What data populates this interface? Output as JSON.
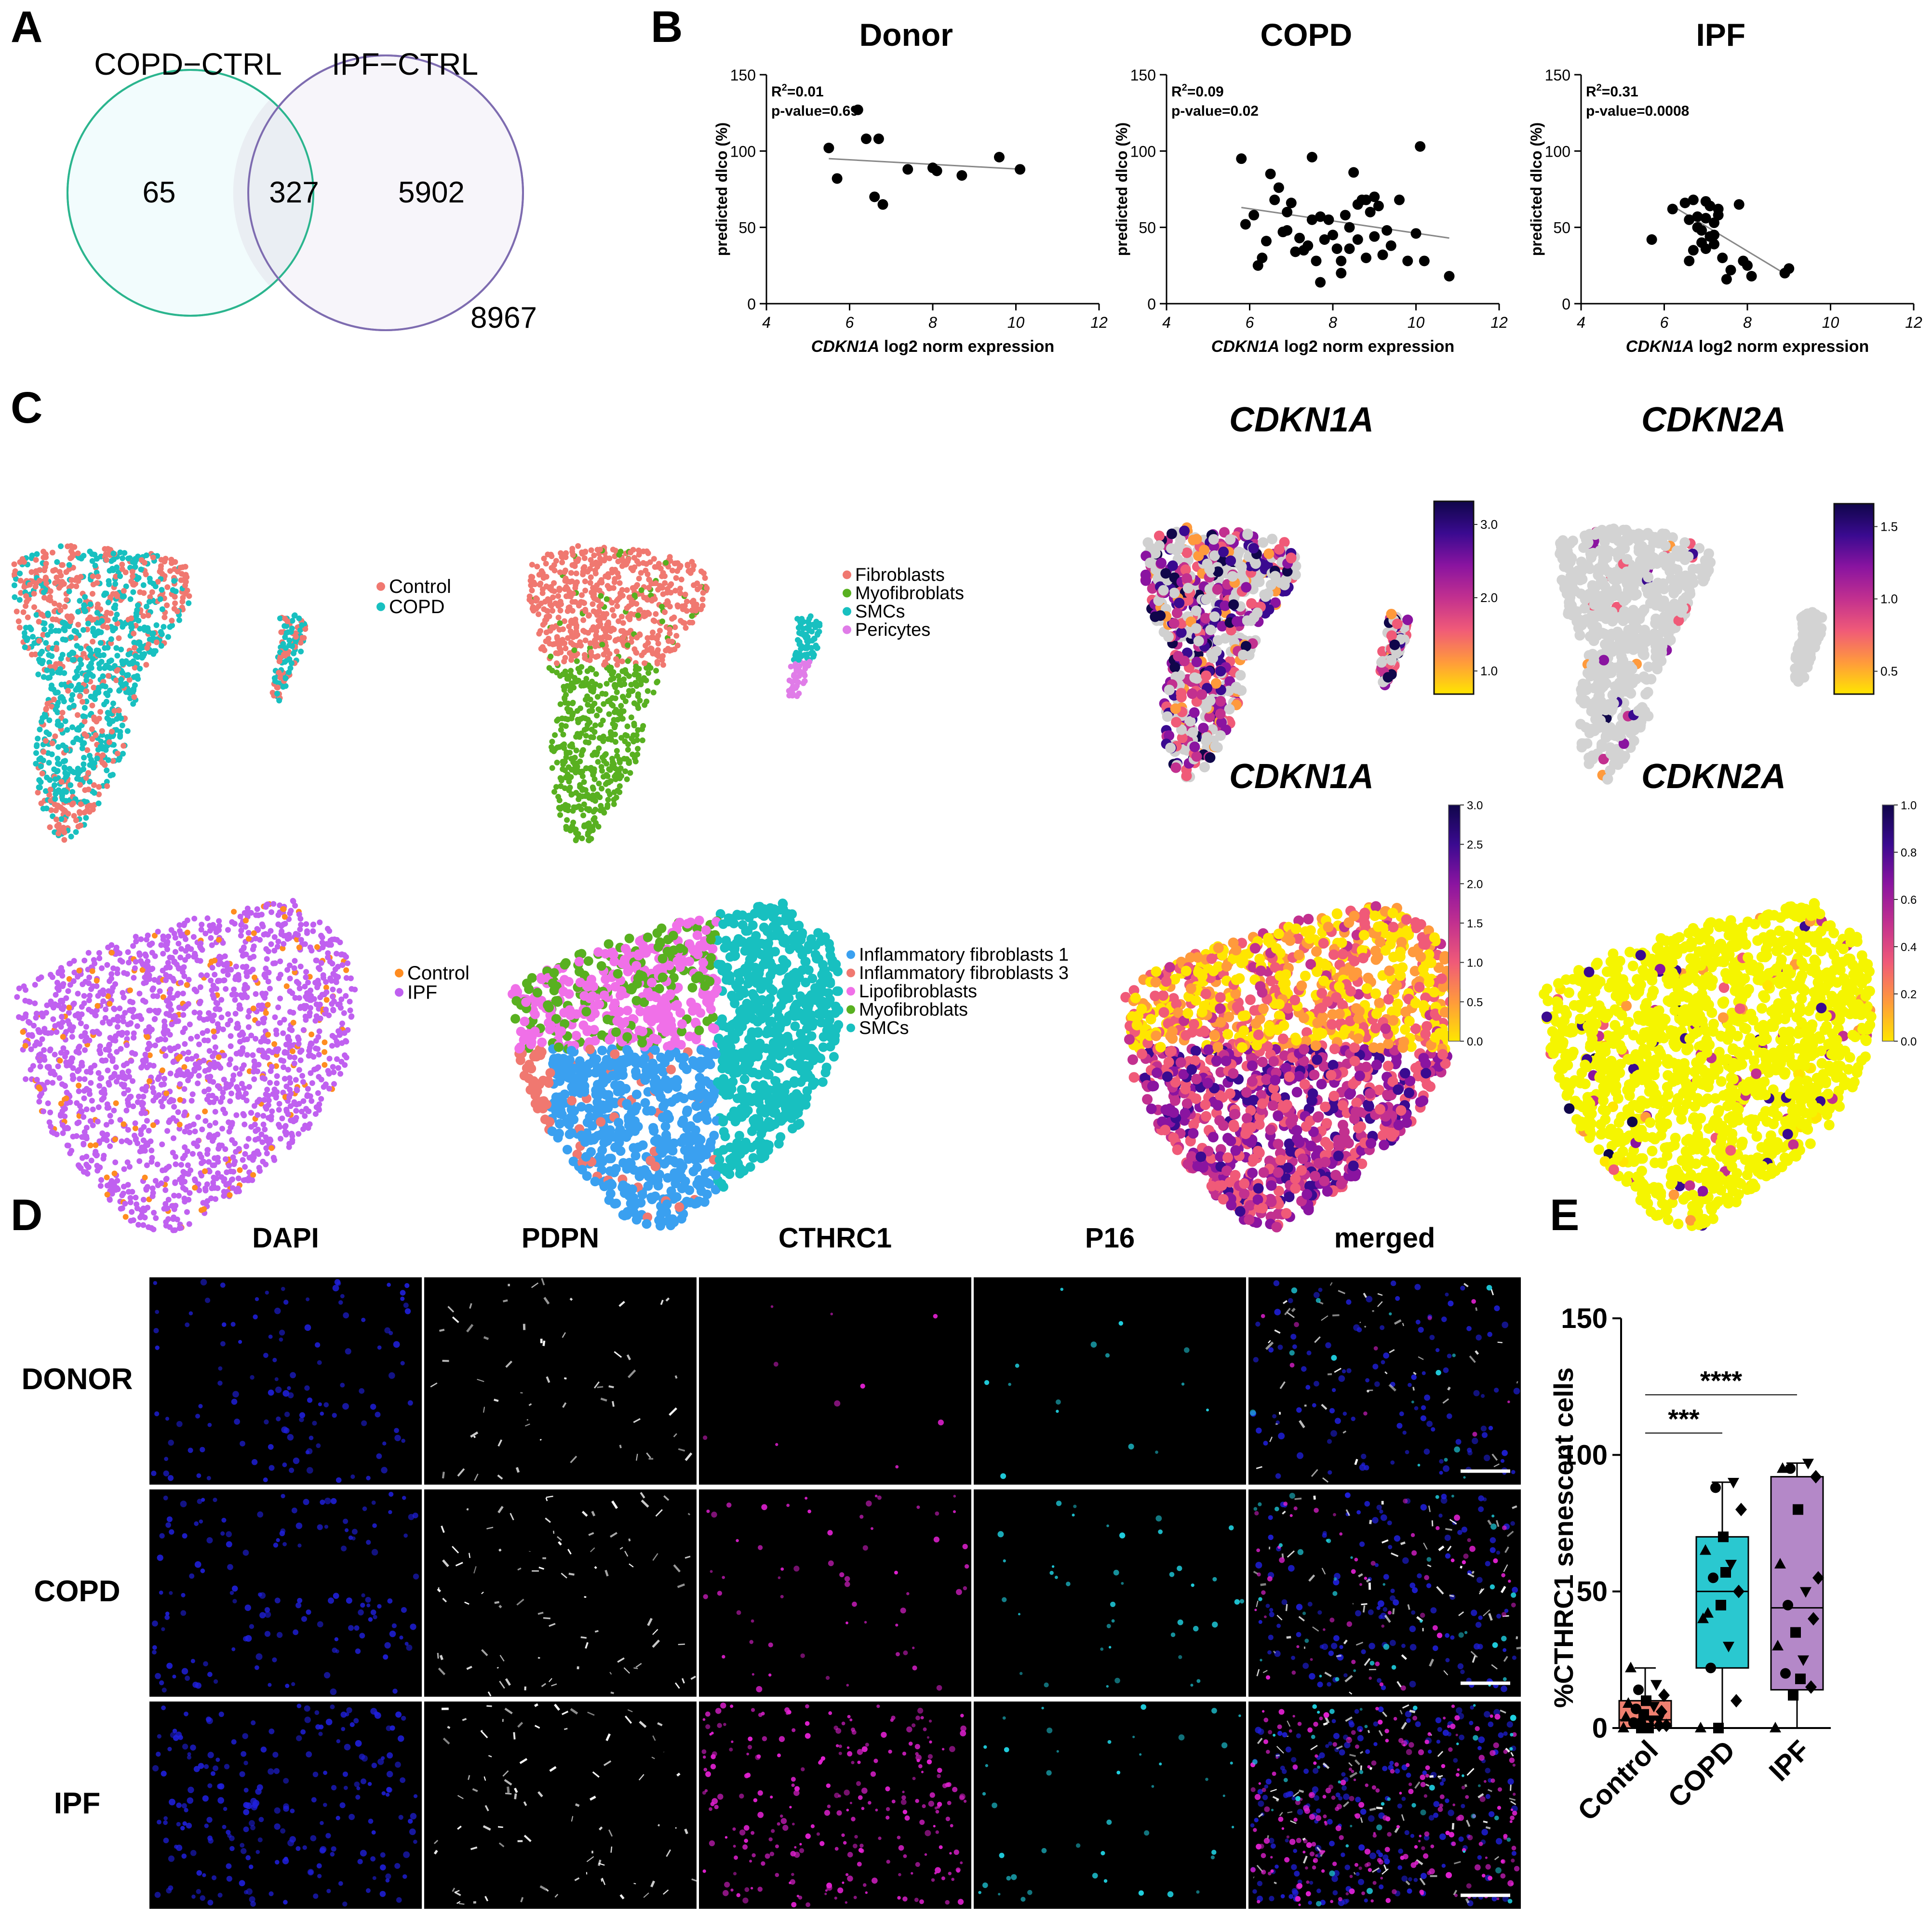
{
  "panels": {
    "a": "A",
    "b": "B",
    "c": "C",
    "d": "D",
    "e": "E"
  },
  "venn": {
    "left_label": "COPD−CTRL",
    "right_label": "IPF−CTRL",
    "left_only": "65",
    "overlap": "327",
    "right_only": "5902",
    "outside": "8967",
    "left_color": "#2bb58e",
    "right_color": "#7e6cb0"
  },
  "chart_data": [
    {
      "type": "scatter",
      "title": "Donor",
      "xlabel_italic": "CDKN1A",
      "xlabel_rest": " log2 norm expression",
      "ylabel": "predicted dlco (%)",
      "xlim": [
        4,
        12
      ],
      "ylim": [
        0,
        150
      ],
      "xticks": [
        "4",
        "6",
        "8",
        "10",
        "12"
      ],
      "yticks": [
        "0",
        "50",
        "100",
        "150"
      ],
      "r2_prefix": "R",
      "r2_sup": "2",
      "r2_value": "=0.01",
      "pvalue": "p-value=0.69",
      "x": [
        5.5,
        5.7,
        6.2,
        6.4,
        6.6,
        6.7,
        6.8,
        7.4,
        8.0,
        8.1,
        8.7,
        9.6,
        10.1
      ],
      "y": [
        102,
        82,
        127,
        108,
        70,
        108,
        65,
        88,
        89,
        87,
        84,
        96,
        88
      ],
      "fit": [
        [
          5.5,
          95
        ],
        [
          10.2,
          88
        ]
      ]
    },
    {
      "type": "scatter",
      "title": "COPD",
      "xlabel_italic": "CDKN1A",
      "xlabel_rest": " log2 norm expression",
      "ylabel": "predicted dlco (%)",
      "xlim": [
        4,
        12
      ],
      "ylim": [
        0,
        150
      ],
      "xticks": [
        "4",
        "6",
        "8",
        "10",
        "12"
      ],
      "yticks": [
        "0",
        "50",
        "100",
        "150"
      ],
      "r2_prefix": "R",
      "r2_sup": "2",
      "r2_value": "=0.09",
      "pvalue": "p-value=0.02",
      "x": [
        5.8,
        5.9,
        6.1,
        6.3,
        6.5,
        6.6,
        6.7,
        6.8,
        6.9,
        7.0,
        7.1,
        7.2,
        7.3,
        7.4,
        7.5,
        7.6,
        7.7,
        7.8,
        7.9,
        8.0,
        8.1,
        8.2,
        8.3,
        8.4,
        8.5,
        8.6,
        8.7,
        8.8,
        8.9,
        9.0,
        9.1,
        9.2,
        9.4,
        9.6,
        9.8,
        10.0,
        10.1,
        10.2,
        10.8,
        6.4,
        6.9,
        7.5,
        8.2,
        8.6,
        9.0,
        6.2,
        7.7,
        8.4,
        8.8,
        9.3
      ],
      "y": [
        95,
        52,
        58,
        30,
        85,
        68,
        76,
        47,
        60,
        66,
        34,
        43,
        35,
        38,
        96,
        28,
        57,
        42,
        55,
        45,
        36,
        28,
        58,
        50,
        86,
        42,
        68,
        30,
        60,
        44,
        64,
        32,
        38,
        68,
        28,
        46,
        103,
        28,
        18,
        41,
        48,
        55,
        20,
        65,
        70,
        25,
        14,
        36,
        68,
        48
      ],
      "fit": [
        [
          5.8,
          63
        ],
        [
          10.8,
          43
        ]
      ]
    },
    {
      "type": "scatter",
      "title": "IPF",
      "xlabel_italic": "CDKN1A",
      "xlabel_rest": " log2 norm expression",
      "ylabel": "predicted dlco (%)",
      "xlim": [
        4,
        12
      ],
      "ylim": [
        0,
        150
      ],
      "xticks": [
        "4",
        "6",
        "8",
        "10",
        "12"
      ],
      "yticks": [
        "0",
        "50",
        "100",
        "150"
      ],
      "r2_prefix": "R",
      "r2_sup": "2",
      "r2_value": "=0.31",
      "pvalue": "p-value=0.0008",
      "x": [
        5.7,
        6.2,
        6.5,
        6.6,
        6.7,
        6.8,
        6.9,
        7.0,
        7.0,
        7.1,
        7.2,
        7.2,
        7.3,
        6.6,
        6.7,
        6.9,
        7.0,
        7.1,
        7.3,
        7.4,
        7.5,
        7.6,
        7.8,
        7.9,
        8.0,
        8.1,
        8.9,
        9.0,
        6.8,
        7.2
      ],
      "y": [
        42,
        62,
        66,
        55,
        35,
        57,
        48,
        67,
        36,
        44,
        53,
        39,
        62,
        28,
        68,
        40,
        56,
        64,
        58,
        30,
        16,
        22,
        65,
        28,
        25,
        18,
        20,
        23,
        50,
        45
      ],
      "fit": [
        [
          6.2,
          64
        ],
        [
          9.0,
          18
        ]
      ]
    },
    {
      "type": "box",
      "ylabel": "%CTHRC1 senescent cells",
      "ylim": [
        0,
        150
      ],
      "yticks": [
        "0",
        "50",
        "100",
        "150"
      ],
      "categories": [
        "Control",
        "COPD",
        "IPF"
      ],
      "colors": [
        "#f08070",
        "#2ac8d0",
        "#b488c8"
      ],
      "boxes": [
        {
          "min": 0,
          "q1": 0,
          "median": 3,
          "q3": 10,
          "max": 22
        },
        {
          "min": 0,
          "q1": 22,
          "median": 50,
          "q3": 70,
          "max": 90
        },
        {
          "min": 0,
          "q1": 14,
          "median": 44,
          "q3": 92,
          "max": 97
        }
      ],
      "points": [
        [
          0,
          0,
          1,
          2,
          3,
          4,
          5,
          6,
          7,
          8,
          9,
          10,
          12,
          14,
          16,
          22,
          0,
          1,
          2,
          3
        ],
        [
          0,
          0,
          10,
          22,
          30,
          40,
          45,
          50,
          55,
          60,
          65,
          70,
          80,
          88,
          90,
          42,
          57
        ],
        [
          0,
          12,
          15,
          20,
          25,
          30,
          35,
          40,
          45,
          50,
          60,
          80,
          92,
          95,
          97,
          95,
          18,
          55
        ]
      ],
      "sig": [
        {
          "label": "***",
          "from": 0,
          "to": 1,
          "y": 108
        },
        {
          "label": "****",
          "from": 0,
          "to": 2,
          "y": 122
        }
      ]
    }
  ],
  "umap": {
    "row1_legend1": [
      "Control",
      "COPD"
    ],
    "row1_legend1_colors": [
      "#f07870",
      "#18c0c0"
    ],
    "row1_legend2": [
      "Fibroblasts",
      "Myofibroblats",
      "SMCs",
      "Pericytes"
    ],
    "row1_legend2_colors": [
      "#f07870",
      "#58b020",
      "#18c0c0",
      "#e07ce8"
    ],
    "row2_legend1": [
      "Control",
      "IPF"
    ],
    "row2_legend1_colors": [
      "#ff8c20",
      "#c060f0"
    ],
    "row2_legend2": [
      "Inflammatory fibroblasts 1",
      "Inflammatory fibroblasts 3",
      "Lipofibroblasts",
      "Myofibroblats",
      "SMCs"
    ],
    "row2_legend2_colors": [
      "#3aa0f0",
      "#f07870",
      "#f070e8",
      "#58b020",
      "#18c0c0"
    ],
    "gene1": "CDKN1A",
    "gene2": "CDKN2A",
    "row1_scale1": [
      "3.0",
      "2.0",
      "1.0"
    ],
    "row1_scale2": [
      "1.5",
      "1.0",
      "0.5"
    ],
    "row2_scale1": [
      "3.0",
      "2.5",
      "2.0",
      "1.5",
      "1.0",
      "0.5",
      "0.0"
    ],
    "row2_scale2": [
      "1.0",
      "0.8",
      "0.6",
      "0.4",
      "0.2",
      "0.0"
    ]
  },
  "micro": {
    "columns": [
      "DAPI",
      "PDPN",
      "CTHRC1",
      "P16",
      "merged"
    ],
    "rows": [
      "DONOR",
      "COPD",
      "IPF"
    ]
  }
}
